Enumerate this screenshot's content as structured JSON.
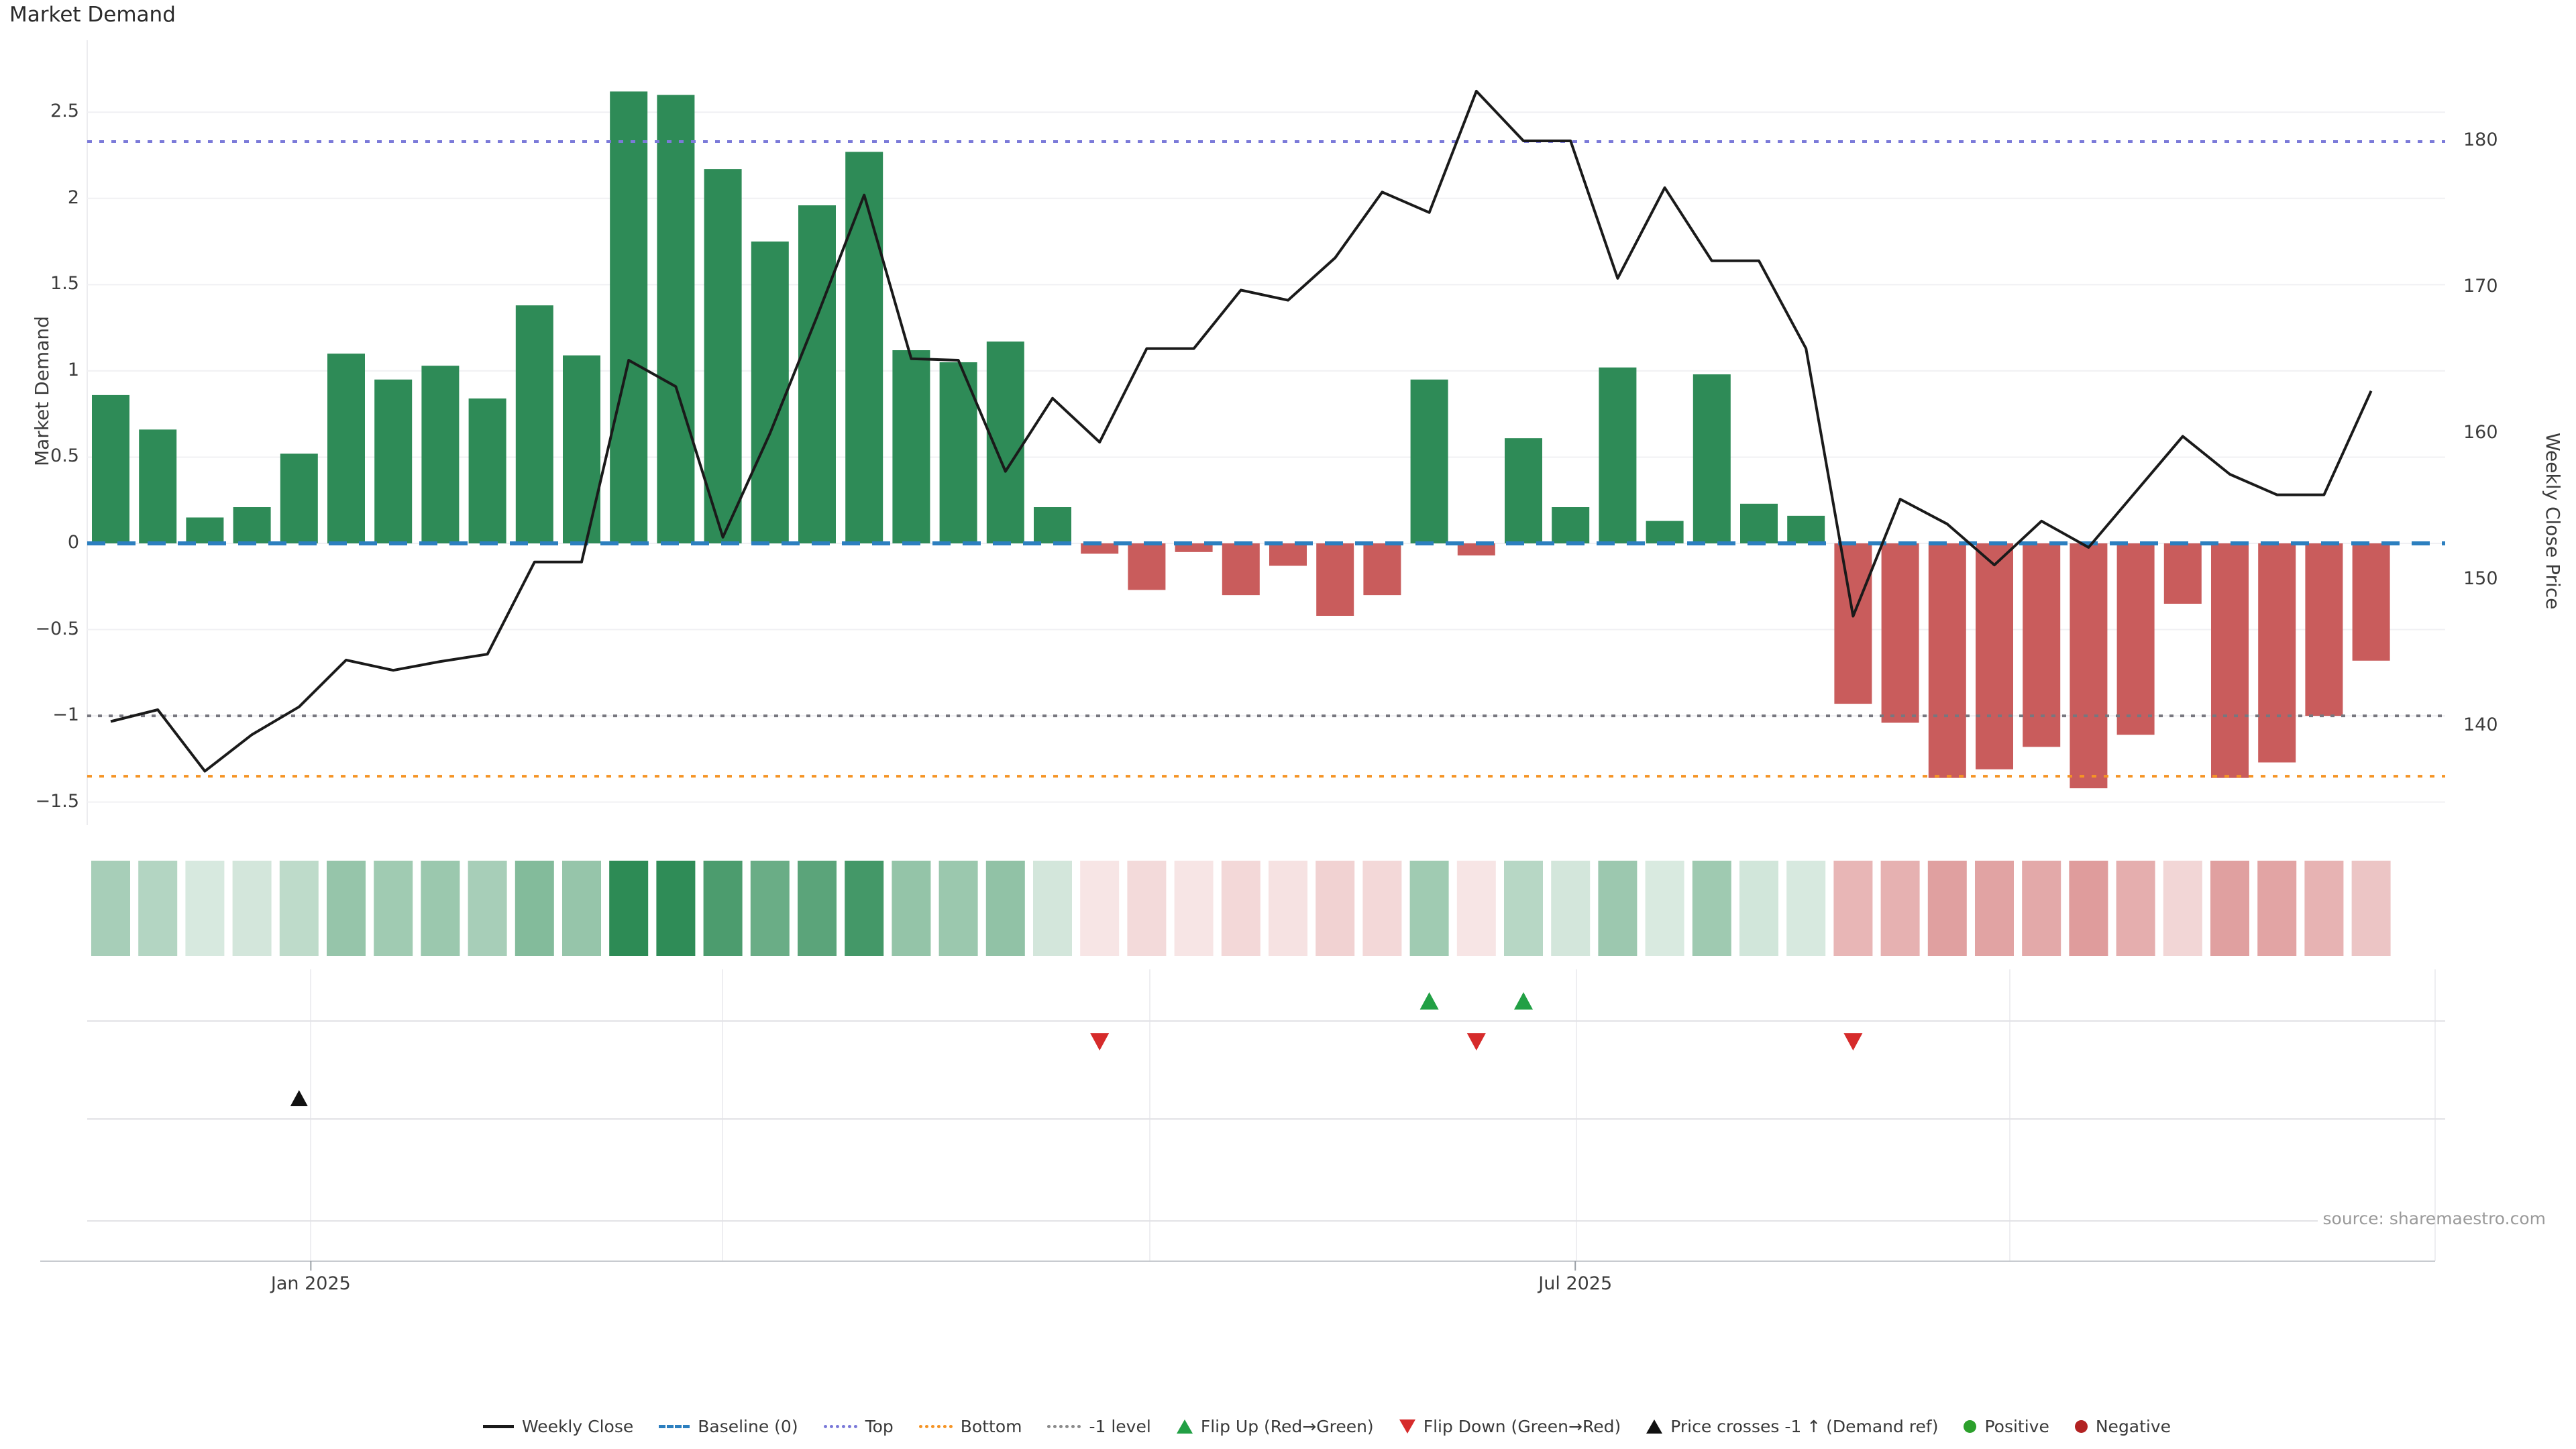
{
  "page": {
    "title": "Market Demand",
    "source_note": "source: sharemaestro.com"
  },
  "colors": {
    "bar_positive": "#2e8b57",
    "bar_negative": "#c95c5c",
    "price_line": "#1a1a1a",
    "baseline": "#2c7fbf",
    "top_line": "#7b7ad9",
    "bottom_line": "#f59425",
    "minus_one_line": "#77777f",
    "flip_up_marker": "#22a045",
    "flip_down_marker": "#d62b2b",
    "price_cross_marker": "#111111",
    "positive_dot": "#2ca02c",
    "negative_dot": "#b22222",
    "gridline": "#f0f0f3",
    "panel_line": "#e2e2e6",
    "axis_line": "#c8cbd0"
  },
  "legend": {
    "items": [
      {
        "id": "weekly-close",
        "label": "Weekly Close",
        "swatch": "line",
        "color": "#1a1a1a"
      },
      {
        "id": "baseline",
        "label": "Baseline (0)",
        "swatch": "dash",
        "color": "#2c7fbf"
      },
      {
        "id": "top",
        "label": "Top",
        "swatch": "dot",
        "color": "#7b7ad9"
      },
      {
        "id": "bottom",
        "label": "Bottom",
        "swatch": "dot",
        "color": "#f59425"
      },
      {
        "id": "minus-1-level",
        "label": "-1 level",
        "swatch": "dot",
        "color": "#8a8a8a"
      },
      {
        "id": "flip-up",
        "label": "Flip Up (Red→Green)",
        "swatch": "tri-up",
        "color": "#22a045"
      },
      {
        "id": "flip-down",
        "label": "Flip Down (Green→Red)",
        "swatch": "tri-down",
        "color": "#d62b2b"
      },
      {
        "id": "price-cross",
        "label": "Price crosses -1 ↑ (Demand ref)",
        "swatch": "tri-up",
        "color": "#111111"
      },
      {
        "id": "positive",
        "label": "Positive",
        "swatch": "circle",
        "color": "#2ca02c"
      },
      {
        "id": "negative",
        "label": "Negative",
        "swatch": "circle",
        "color": "#b22222"
      }
    ]
  },
  "chart_data": {
    "type": "bar",
    "subtype": "weekly bar + line combo with heatmap strip and event-marker rows",
    "title": "Market Demand",
    "weeks": 49,
    "series": [
      {
        "name": "Market Demand",
        "type": "bar",
        "axis": "left",
        "values": [
          0.86,
          0.66,
          0.15,
          0.21,
          0.52,
          1.1,
          0.95,
          1.03,
          0.84,
          1.38,
          1.09,
          2.62,
          2.6,
          2.17,
          1.75,
          1.96,
          2.27,
          1.12,
          1.05,
          1.17,
          0.21,
          -0.06,
          -0.27,
          -0.05,
          -0.3,
          -0.13,
          -0.42,
          -0.3,
          0.95,
          -0.07,
          0.61,
          0.21,
          1.02,
          0.13,
          0.98,
          0.23,
          0.16,
          -0.93,
          -1.04,
          -1.36,
          -1.31,
          -1.18,
          -1.42,
          -1.11,
          -0.35,
          -1.36,
          -1.27,
          -1.0,
          -0.68
        ]
      },
      {
        "name": "Weekly Close",
        "type": "line",
        "axis": "right",
        "values": [
          140.3,
          141.1,
          136.9,
          139.4,
          141.3,
          144.5,
          143.8,
          144.4,
          144.9,
          151.2,
          151.2,
          165.0,
          163.2,
          152.9,
          160.0,
          168.0,
          176.3,
          165.1,
          165.0,
          157.4,
          162.4,
          159.4,
          165.8,
          165.8,
          169.8,
          169.1,
          172.0,
          176.5,
          175.1,
          183.4,
          180.0,
          180.0,
          170.6,
          176.8,
          171.8,
          171.8,
          165.8,
          147.5,
          155.5,
          153.8,
          151.0,
          154.0,
          152.2,
          156.0,
          159.8,
          157.2,
          155.8,
          155.8,
          162.9
        ]
      }
    ],
    "left_axis": {
      "label": "Market Demand",
      "tick_values": [
        2.5,
        2,
        1.5,
        1,
        0.5,
        0,
        -0.5,
        -1,
        -1.5
      ],
      "tick_labels": [
        "2.5",
        "2",
        "1.5",
        "1",
        "0.5",
        "0",
        "−0.5",
        "−1",
        "−1.5"
      ]
    },
    "right_axis": {
      "label": "Weekly Close Price",
      "tick_values": [
        180,
        170,
        160,
        150,
        140
      ],
      "tick_labels": [
        "180",
        "170",
        "160",
        "150",
        "140"
      ]
    },
    "x_axis": {
      "tick_labels": [
        "Jan 2025",
        "Jul 2025"
      ],
      "tick_weeks": [
        5.25,
        32.1
      ]
    },
    "reference_lines": {
      "baseline": 0,
      "top": 2.33,
      "bottom": -1.35,
      "minus_one": -1
    },
    "markers": {
      "flip_up_weeks": [
        29,
        31
      ],
      "flip_down_weeks": [
        22,
        30,
        38
      ],
      "price_cross_weeks": [
        5
      ]
    },
    "heatmap": {
      "derived_from": "Market Demand values (hue = sign, opacity = magnitude)",
      "max_abs": 2.62
    },
    "grid": "faint horizontal gridlines at left-axis ticks; legend centered below chart"
  }
}
